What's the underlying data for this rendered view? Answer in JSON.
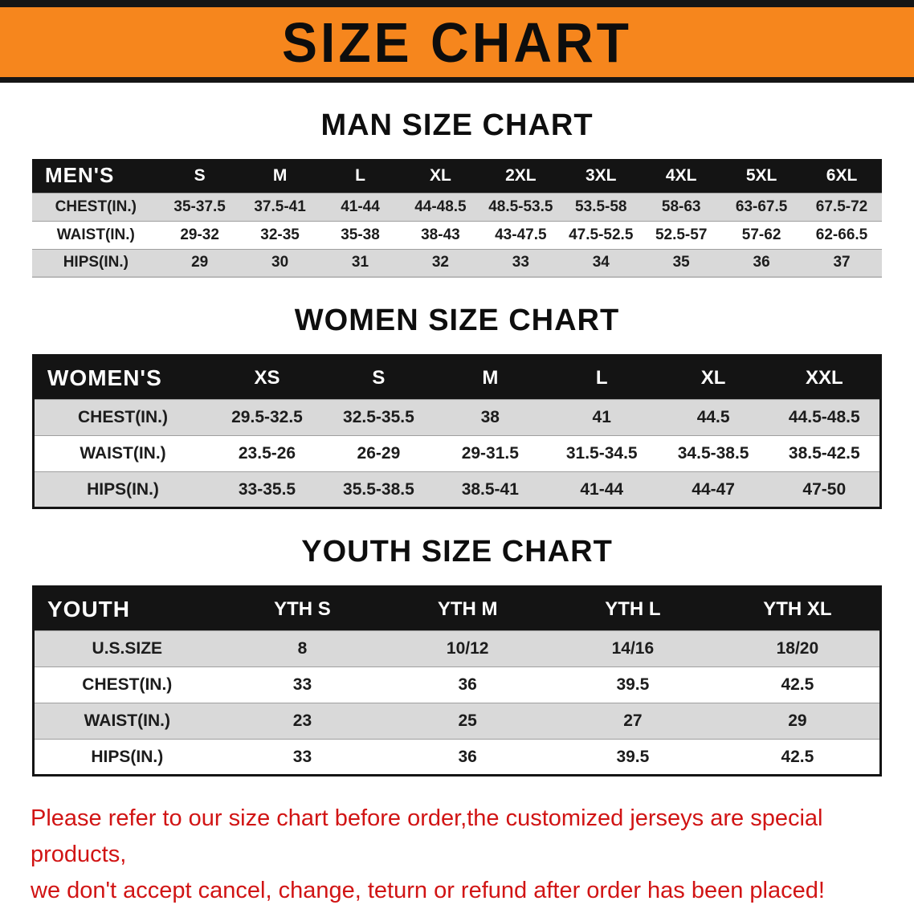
{
  "banner": {
    "title": "SIZE CHART",
    "bg_color": "#f6861d",
    "border_color": "#151515"
  },
  "chart_data": [
    {
      "type": "table",
      "title": "MAN SIZE CHART",
      "corner": "MEN'S",
      "columns": [
        "S",
        "M",
        "L",
        "XL",
        "2XL",
        "3XL",
        "4XL",
        "5XL",
        "6XL"
      ],
      "rows": [
        {
          "label": "CHEST(IN.)",
          "values": [
            "35-37.5",
            "37.5-41",
            "41-44",
            "44-48.5",
            "48.5-53.5",
            "53.5-58",
            "58-63",
            "63-67.5",
            "67.5-72"
          ]
        },
        {
          "label": "WAIST(IN.)",
          "values": [
            "29-32",
            "32-35",
            "35-38",
            "38-43",
            "43-47.5",
            "47.5-52.5",
            "52.5-57",
            "57-62",
            "62-66.5"
          ]
        },
        {
          "label": "HIPS(IN.)",
          "values": [
            "29",
            "30",
            "31",
            "32",
            "33",
            "34",
            "35",
            "36",
            "37"
          ]
        }
      ]
    },
    {
      "type": "table",
      "title": "WOMEN SIZE CHART",
      "corner": "WOMEN'S",
      "columns": [
        "XS",
        "S",
        "M",
        "L",
        "XL",
        "XXL"
      ],
      "rows": [
        {
          "label": "CHEST(IN.)",
          "values": [
            "29.5-32.5",
            "32.5-35.5",
            "38",
            "41",
            "44.5",
            "44.5-48.5"
          ]
        },
        {
          "label": "WAIST(IN.)",
          "values": [
            "23.5-26",
            "26-29",
            "29-31.5",
            "31.5-34.5",
            "34.5-38.5",
            "38.5-42.5"
          ]
        },
        {
          "label": "HIPS(IN.)",
          "values": [
            "33-35.5",
            "35.5-38.5",
            "38.5-41",
            "41-44",
            "44-47",
            "47-50"
          ]
        }
      ]
    },
    {
      "type": "table",
      "title": "YOUTH SIZE CHART",
      "corner": "YOUTH",
      "columns": [
        "YTH S",
        "YTH M",
        "YTH L",
        "YTH XL"
      ],
      "rows": [
        {
          "label": "U.S.SIZE",
          "values": [
            "8",
            "10/12",
            "14/16",
            "18/20"
          ]
        },
        {
          "label": "CHEST(IN.)",
          "values": [
            "33",
            "36",
            "39.5",
            "42.5"
          ]
        },
        {
          "label": "WAIST(IN.)",
          "values": [
            "23",
            "25",
            "27",
            "29"
          ]
        },
        {
          "label": "HIPS(IN.)",
          "values": [
            "33",
            "36",
            "39.5",
            "42.5"
          ]
        }
      ]
    }
  ],
  "footer": {
    "line1": "Please refer to our size chart before order,the customized jerseys are special products,",
    "line2": "we don't accept cancel, change, teturn or refund after order has been placed!",
    "color": "#d11414"
  }
}
